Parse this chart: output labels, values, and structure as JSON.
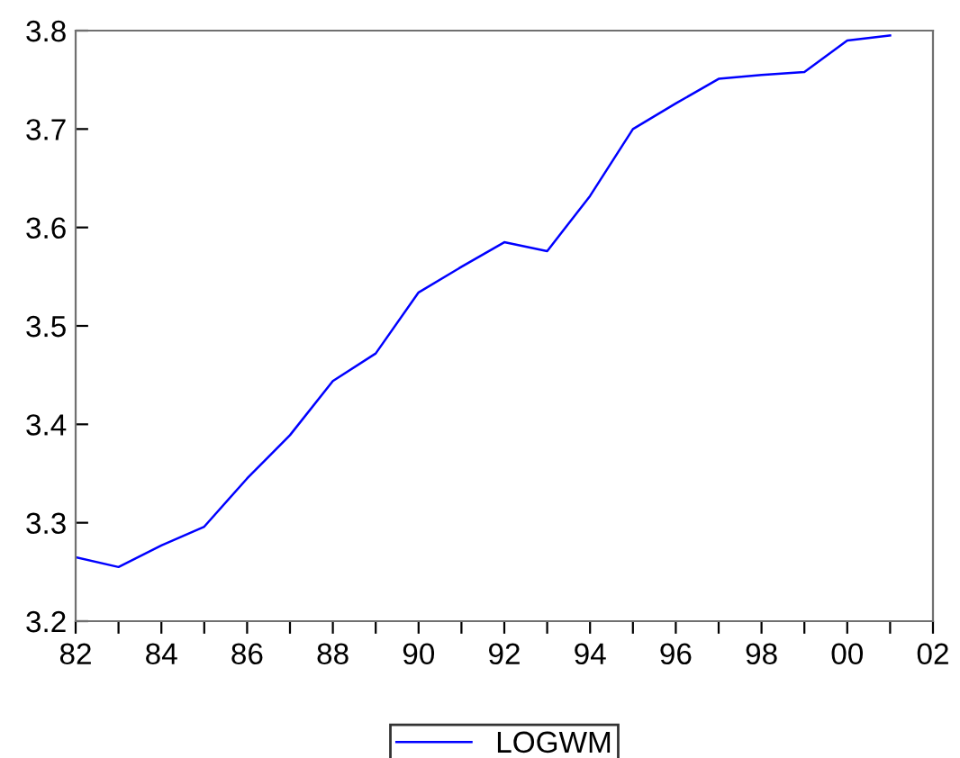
{
  "chart_data": {
    "type": "line",
    "x": [
      1982,
      1983,
      1984,
      1985,
      1986,
      1987,
      1988,
      1989,
      1990,
      1991,
      1992,
      1993,
      1994,
      1995,
      1996,
      1997,
      1998,
      1999,
      2000,
      2001
    ],
    "series": [
      {
        "name": "LOGWM",
        "color": "#0000ff",
        "values": [
          3.265,
          3.255,
          3.277,
          3.296,
          3.345,
          3.389,
          3.444,
          3.472,
          3.534,
          3.56,
          3.585,
          3.576,
          3.632,
          3.7,
          3.726,
          3.751,
          3.755,
          3.758,
          3.79,
          3.795
        ]
      }
    ],
    "xlim": [
      1982,
      2002
    ],
    "ylim": [
      3.2,
      3.8
    ],
    "xticks": [
      {
        "value": 1982,
        "label": "82"
      },
      {
        "value": 1983,
        "label": null
      },
      {
        "value": 1984,
        "label": "84"
      },
      {
        "value": 1985,
        "label": null
      },
      {
        "value": 1986,
        "label": "86"
      },
      {
        "value": 1987,
        "label": null
      },
      {
        "value": 1988,
        "label": "88"
      },
      {
        "value": 1989,
        "label": null
      },
      {
        "value": 1990,
        "label": "90"
      },
      {
        "value": 1991,
        "label": null
      },
      {
        "value": 1992,
        "label": "92"
      },
      {
        "value": 1993,
        "label": null
      },
      {
        "value": 1994,
        "label": "94"
      },
      {
        "value": 1995,
        "label": null
      },
      {
        "value": 1996,
        "label": "96"
      },
      {
        "value": 1997,
        "label": null
      },
      {
        "value": 1998,
        "label": "98"
      },
      {
        "value": 1999,
        "label": null
      },
      {
        "value": 2000,
        "label": "00"
      },
      {
        "value": 2001,
        "label": null
      },
      {
        "value": 2002,
        "label": "02"
      }
    ],
    "yticks": [
      3.2,
      3.3,
      3.4,
      3.5,
      3.6,
      3.7,
      3.8
    ],
    "legend": "bottom",
    "grid": false,
    "marker": "none",
    "line_style": "solid"
  }
}
